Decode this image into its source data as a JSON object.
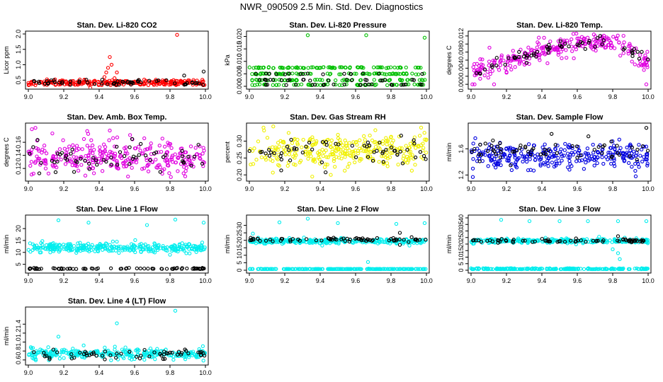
{
  "figure": {
    "title": "NWR_090509  2.5 Min. Std. Dev. Diagnostics"
  },
  "chart_data": [
    {
      "id": "co2",
      "type": "scatter",
      "title": "Stan. Dev. Li-820 CO2",
      "ylabel": "Licor ppm",
      "x": {
        "range": [
          9.0,
          10.0
        ],
        "ticks": [
          9.0,
          9.2,
          9.4,
          9.6,
          9.8,
          10.0
        ],
        "tick_labels": [
          "9.0",
          "9.2",
          "9.4",
          "9.6",
          "9.8",
          "10.0"
        ]
      },
      "y": {
        "range": [
          0.3,
          2.0
        ],
        "ticks": [
          0.5,
          1.0,
          1.5,
          2.0
        ],
        "tick_labels": [
          "0.5",
          "1.0",
          "1.5",
          "2.0"
        ]
      },
      "series": [
        {
          "name": "dense",
          "color": "#ff0000",
          "n": 260,
          "base": 0.42,
          "noise": 0.05,
          "spikes": [
            [
              9.43,
              0.6
            ],
            [
              9.44,
              0.75
            ],
            [
              9.45,
              0.9
            ],
            [
              9.46,
              1.25
            ],
            [
              9.47,
              1.0
            ],
            [
              9.5,
              0.75
            ],
            [
              9.84,
              1.97
            ],
            [
              9.35,
              0.25
            ]
          ]
        },
        {
          "name": "sparse",
          "color": "#000000",
          "n": 60,
          "base": 0.42,
          "noise": 0.04,
          "spikes": [
            [
              9.88,
              0.65
            ],
            [
              9.99,
              0.78
            ]
          ]
        }
      ]
    },
    {
      "id": "pressure",
      "type": "scatter",
      "title": "Stan. Dev. Li-820 Pressure",
      "ylabel": "kPa",
      "x": {
        "range": [
          9.0,
          10.0
        ],
        "ticks": [
          9.0,
          9.2,
          9.4,
          9.6,
          9.8,
          10.0
        ],
        "tick_labels": [
          "9.0",
          "9.2",
          "9.4",
          "9.6",
          "9.8",
          "10.0"
        ]
      },
      "y": {
        "range": [
          0.0,
          0.021
        ],
        "ticks": [
          0.0,
          0.005,
          0.01,
          0.015,
          0.02
        ],
        "tick_labels": [
          "0.000",
          "0.005",
          "0.010",
          "0.015",
          "0.020"
        ]
      },
      "series": [
        {
          "name": "dense",
          "color": "#00c000",
          "n": 280,
          "base": 0.003,
          "noise": 0.003,
          "levels": [
            0.0,
            0.0025,
            0.005,
            0.0075
          ],
          "spikes": [
            [
              9.33,
              0.0205
            ],
            [
              9.66,
              0.0205
            ],
            [
              9.99,
              0.0195
            ]
          ]
        },
        {
          "name": "sparse",
          "color": "#000000",
          "n": 60,
          "base": 0.0025,
          "noise": 0.002,
          "levels": [
            0.0,
            0.0025,
            0.005
          ],
          "spikes": []
        }
      ]
    },
    {
      "id": "temp",
      "type": "scatter",
      "title": "Stan. Dev. Li-820 Temp.",
      "ylabel": "degrees C",
      "x": {
        "range": [
          9.0,
          10.0
        ],
        "ticks": [
          9.0,
          9.2,
          9.4,
          9.6,
          9.8,
          10.0
        ],
        "tick_labels": [
          "9.0",
          "9.2",
          "9.4",
          "9.6",
          "9.8",
          "10.0"
        ]
      },
      "y": {
        "range": [
          -0.0005,
          0.0125
        ],
        "ticks": [
          0.0,
          0.002,
          0.004,
          0.006,
          0.008,
          0.01,
          0.012
        ],
        "tick_labels": [
          "0.000",
          "",
          "0.004",
          "",
          "0.008",
          "",
          "0.012"
        ]
      },
      "series": [
        {
          "name": "dense",
          "color": "#e000e0",
          "n": 280,
          "trend": "hump",
          "noise": 0.0012,
          "spikes": [
            [
              9.02,
              0.0
            ],
            [
              9.13,
              0.0
            ],
            [
              9.99,
              0.0
            ]
          ]
        },
        {
          "name": "sparse",
          "color": "#000000",
          "n": 60,
          "trend": "hump",
          "noise": 0.0008,
          "spikes": []
        }
      ]
    },
    {
      "id": "ambbox",
      "type": "scatter",
      "title": "Stan. Dev. Amb. Box Temp.",
      "ylabel": "degrees C",
      "x": {
        "range": [
          9.0,
          10.0
        ],
        "ticks": [
          9.0,
          9.2,
          9.4,
          9.6,
          9.8,
          10.0
        ],
        "tick_labels": [
          "9.0",
          "9.2",
          "9.4",
          "9.6",
          "9.8",
          "10.0"
        ]
      },
      "y": {
        "range": [
          0.105,
          0.185
        ],
        "ticks": [
          0.12,
          0.14,
          0.16
        ],
        "tick_labels": [
          "0.12",
          "0.14",
          "0.16"
        ]
      },
      "series": [
        {
          "name": "dense",
          "color": "#e000e0",
          "n": 300,
          "base": 0.137,
          "noise": 0.013,
          "spikes": [
            [
              9.02,
              0.18
            ],
            [
              9.04,
              0.182
            ],
            [
              9.46,
              0.178
            ]
          ]
        },
        {
          "name": "sparse",
          "color": "#000000",
          "n": 60,
          "base": 0.135,
          "noise": 0.011,
          "spikes": []
        }
      ]
    },
    {
      "id": "rh",
      "type": "scatter",
      "title": "Stan. Dev. Gas Stream RH",
      "ylabel": "percent",
      "x": {
        "range": [
          9.0,
          10.0
        ],
        "ticks": [
          9.0,
          9.2,
          9.4,
          9.6,
          9.8,
          10.0
        ],
        "tick_labels": [
          "9.0",
          "9.2",
          "9.4",
          "9.6",
          "9.8",
          "10.0"
        ]
      },
      "y": {
        "range": [
          0.19,
          0.345
        ],
        "ticks": [
          0.2,
          0.25,
          0.3
        ],
        "tick_labels": [
          "0.20",
          "0.25",
          "0.30"
        ]
      },
      "series": [
        {
          "name": "dense",
          "color": "#f0f000",
          "n": 300,
          "base": 0.27,
          "noise": 0.025,
          "spikes": [
            [
              9.08,
              0.34
            ],
            [
              9.46,
              0.2
            ],
            [
              9.97,
              0.34
            ]
          ]
        },
        {
          "name": "sparse",
          "color": "#000000",
          "n": 60,
          "base": 0.268,
          "noise": 0.02,
          "spikes": []
        }
      ]
    },
    {
      "id": "sampleflow",
      "type": "scatter",
      "title": "Stan. Dev. Sample Flow",
      "ylabel": "ml/min",
      "x": {
        "range": [
          9.0,
          10.0
        ],
        "ticks": [
          9.0,
          9.2,
          9.4,
          9.6,
          9.8,
          10.0
        ],
        "tick_labels": [
          "9.0",
          "9.2",
          "9.4",
          "9.6",
          "9.8",
          "10.0"
        ]
      },
      "y": {
        "range": [
          1.15,
          1.95
        ],
        "ticks": [
          1.2,
          1.6
        ],
        "tick_labels": [
          "1.2",
          "1.6"
        ]
      },
      "series": [
        {
          "name": "dense",
          "color": "#0000e0",
          "n": 300,
          "base": 1.5,
          "noise": 0.1,
          "spikes": [
            [
              9.01,
              1.17
            ],
            [
              9.93,
              1.18
            ]
          ]
        },
        {
          "name": "sparse",
          "color": "#000000",
          "n": 60,
          "base": 1.58,
          "noise": 0.09,
          "spikes": [
            [
              9.99,
              1.92
            ]
          ]
        }
      ]
    },
    {
      "id": "line1",
      "type": "scatter",
      "title": "Stan. Dev. Line 1 Flow",
      "ylabel": "ml/min",
      "x": {
        "range": [
          9.0,
          10.0
        ],
        "ticks": [
          9.0,
          9.2,
          9.4,
          9.6,
          9.8,
          10.0
        ],
        "tick_labels": [
          "9.0",
          "9.2",
          "9.4",
          "9.6",
          "9.8",
          "10.0"
        ]
      },
      "y": {
        "range": [
          2.5,
          24.5
        ],
        "ticks": [
          5,
          10,
          15,
          20
        ],
        "tick_labels": [
          "5",
          "10",
          "15",
          "20"
        ]
      },
      "series": [
        {
          "name": "dense",
          "color": "#00eeee",
          "n": 300,
          "base": 12.0,
          "noise": 0.9,
          "spikes": [
            [
              9.17,
              23.5
            ],
            [
              9.34,
              22.5
            ],
            [
              9.67,
              21.5
            ],
            [
              9.83,
              23.8
            ],
            [
              9.99,
              22.5
            ],
            [
              9.5,
              14.5
            ],
            [
              9.8,
              9.0
            ]
          ]
        },
        {
          "name": "sparse",
          "color": "#000000",
          "n": 70,
          "base": 3.2,
          "noise": 0.15,
          "spikes": []
        }
      ]
    },
    {
      "id": "line2",
      "type": "scatter",
      "title": "Stan. Dev. Line 2 Flow",
      "ylabel": "ml/min",
      "x": {
        "range": [
          9.0,
          10.0
        ],
        "ticks": [
          9.0,
          9.2,
          9.4,
          9.6,
          9.8,
          10.0
        ],
        "tick_labels": [
          "9.0",
          "9.2",
          "9.4",
          "9.6",
          "9.8",
          "10.0"
        ]
      },
      "y": {
        "range": [
          0,
          35
        ],
        "ticks": [
          0,
          5,
          10,
          15,
          20,
          25,
          30
        ],
        "tick_labels": [
          "0",
          "5",
          "10",
          "15",
          "20",
          "25",
          "30"
        ]
      },
      "series": [
        {
          "name": "dense",
          "color": "#00eeee",
          "n": 300,
          "base": 19.5,
          "noise": 0.8,
          "spikes": [
            [
              9.02,
              24.5
            ],
            [
              9.17,
              32.0
            ],
            [
              9.33,
              34.5
            ],
            [
              9.5,
              31.5
            ],
            [
              9.67,
              5.5
            ],
            [
              9.83,
              31.0
            ],
            [
              9.99,
              31.5
            ]
          ]
        },
        {
          "name": "floor",
          "color": "#00eeee",
          "n": 200,
          "base": 0.8,
          "noise": 0.05,
          "spikes": []
        },
        {
          "name": "sparse",
          "color": "#000000",
          "n": 70,
          "base": 20.5,
          "noise": 0.6,
          "spikes": [
            [
              9.85,
              25.0
            ],
            [
              9.85,
              17.0
            ]
          ]
        }
      ]
    },
    {
      "id": "line3",
      "type": "scatter",
      "title": "Stan. Dev. Line 3 Flow",
      "ylabel": "ml/min",
      "x": {
        "range": [
          9.0,
          10.0
        ],
        "ticks": [
          9.0,
          9.2,
          9.4,
          9.6,
          9.8,
          10.0
        ],
        "tick_labels": [
          "9.0",
          "9.2",
          "9.4",
          "9.6",
          "9.8",
          "10.0"
        ]
      },
      "y": {
        "range": [
          0,
          40
        ],
        "ticks": [
          0,
          5,
          10,
          15,
          20,
          25,
          30,
          35,
          40
        ],
        "tick_labels": [
          "0",
          "5",
          "10",
          "15",
          "20",
          "25",
          "30",
          "35",
          "40"
        ]
      },
      "series": [
        {
          "name": "dense",
          "color": "#00eeee",
          "n": 300,
          "base": 22.5,
          "noise": 0.8,
          "spikes": [
            [
              9.17,
              38.5
            ],
            [
              9.33,
              37.5
            ],
            [
              9.5,
              37.5
            ],
            [
              9.66,
              37.5
            ],
            [
              9.83,
              37.5
            ],
            [
              9.99,
              37.5
            ],
            [
              9.8,
              16.0
            ],
            [
              9.84,
              8.5
            ],
            [
              9.83,
              13.0
            ]
          ]
        },
        {
          "name": "floor",
          "color": "#00eeee",
          "n": 200,
          "base": 0.8,
          "noise": 0.05,
          "spikes": []
        },
        {
          "name": "sparse",
          "color": "#000000",
          "n": 70,
          "base": 22.5,
          "noise": 0.6,
          "spikes": [
            [
              9.83,
              26.0
            ]
          ]
        }
      ]
    },
    {
      "id": "line4",
      "type": "scatter",
      "title": "Stan. Dev. Line 4 (LT) Flow",
      "ylabel": "ml/min",
      "x": {
        "range": [
          9.0,
          10.0
        ],
        "ticks": [
          9.0,
          9.2,
          9.4,
          9.6,
          9.8,
          10.0
        ],
        "tick_labels": [
          "9.0",
          "9.2",
          "9.4",
          "9.6",
          "9.8",
          "10.0"
        ]
      },
      "y": {
        "range": [
          0.55,
          1.72
        ],
        "ticks": [
          0.6,
          0.8,
          1.0,
          1.2,
          1.4
        ],
        "tick_labels": [
          "0.6",
          "0.8",
          "1.0",
          "1.2",
          "1.4"
        ]
      },
      "series": [
        {
          "name": "dense",
          "color": "#00eeee",
          "n": 300,
          "base": 0.74,
          "noise": 0.06,
          "spikes": [
            [
              9.17,
              1.12
            ],
            [
              9.5,
              1.42
            ],
            [
              9.83,
              1.7
            ]
          ]
        },
        {
          "name": "sparse",
          "color": "#000000",
          "n": 60,
          "base": 0.73,
          "noise": 0.05,
          "spikes": []
        }
      ]
    }
  ]
}
